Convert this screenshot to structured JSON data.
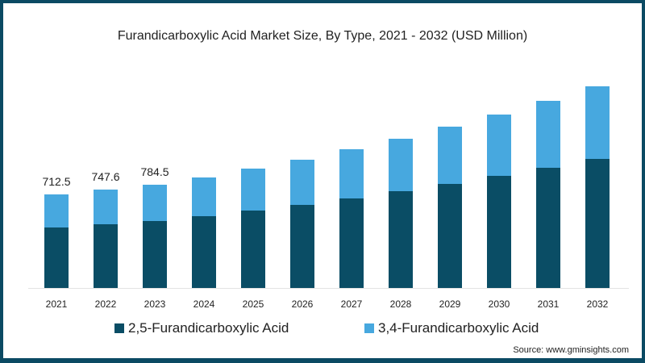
{
  "chart_data": {
    "type": "bar",
    "stacked": true,
    "title": "Furandicarboxylic Acid Market Size, By Type, 2021 - 2032 (USD Million)",
    "xlabel": "",
    "ylabel": "",
    "categories": [
      "2021",
      "2022",
      "2023",
      "2024",
      "2025",
      "2026",
      "2027",
      "2028",
      "2029",
      "2030",
      "2031",
      "2032"
    ],
    "series": [
      {
        "name": "2,5-Furandicarboxylic Acid",
        "color": "#0a4d65",
        "values": [
          461,
          486,
          510,
          547,
          590,
          633,
          682,
          737,
          793,
          854,
          915,
          983
        ]
      },
      {
        "name": "3,4-Furandicarboxylic Acid",
        "color": "#47a8df",
        "values": [
          251.5,
          261.6,
          274.5,
          295,
          319,
          344,
          375,
          400,
          436,
          467,
          511,
          554
        ]
      }
    ],
    "totals": [
      712.5,
      747.6,
      784.5,
      842,
      909,
      977,
      1057,
      1137,
      1229,
      1321,
      1426,
      1537
    ],
    "data_labels": {
      "2021": "712.5",
      "2022": "747.6",
      "2023": "784.5"
    },
    "ylim": [
      0,
      1600
    ],
    "grid": false,
    "legend_position": "bottom"
  },
  "title": "Furandicarboxylic Acid Market Size, By Type, 2021 - 2032 (USD Million)",
  "labels": [
    "712.5",
    "747.6",
    "784.5"
  ],
  "years": [
    "2021",
    "2022",
    "2023",
    "2024",
    "2025",
    "2026",
    "2027",
    "2028",
    "2029",
    "2030",
    "2031",
    "2032"
  ],
  "legend": [
    "2,5-Furandicarboxylic Acid",
    "3,4-Furandicarboxylic Acid"
  ],
  "source": "Source: www.gminsights.com"
}
